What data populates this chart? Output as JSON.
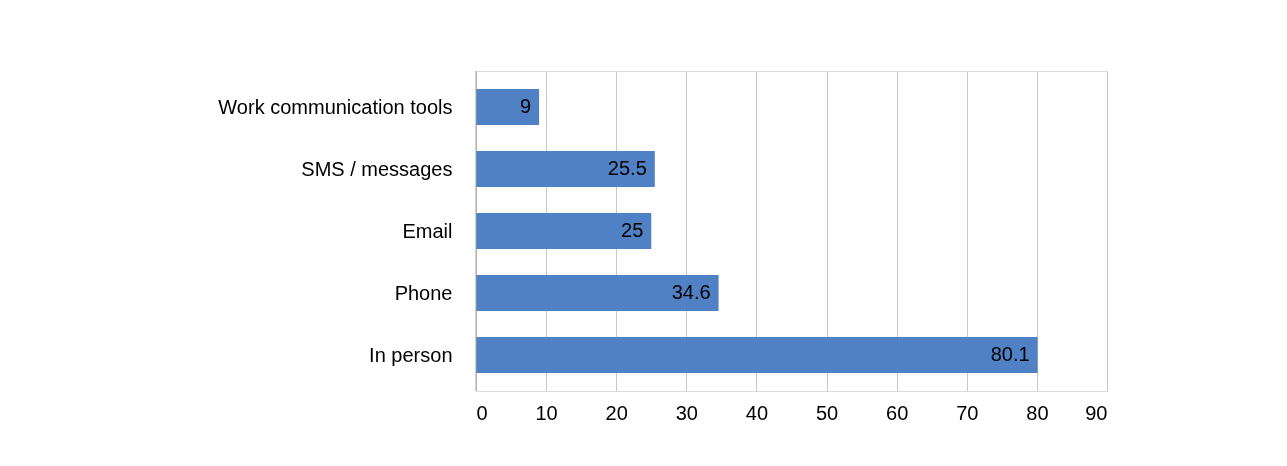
{
  "chart_data": {
    "type": "bar",
    "orientation": "horizontal",
    "categories": [
      "Work communication tools",
      "SMS / messages",
      "Email",
      "Phone",
      "In person"
    ],
    "values": [
      9,
      25.5,
      25,
      34.6,
      80.1
    ],
    "color": "#4f81c4",
    "xlim": [
      0,
      90
    ],
    "xticks": [
      0,
      10,
      20,
      30,
      40,
      50,
      60,
      70,
      80,
      90
    ],
    "grid": "x",
    "data_labels": true
  }
}
